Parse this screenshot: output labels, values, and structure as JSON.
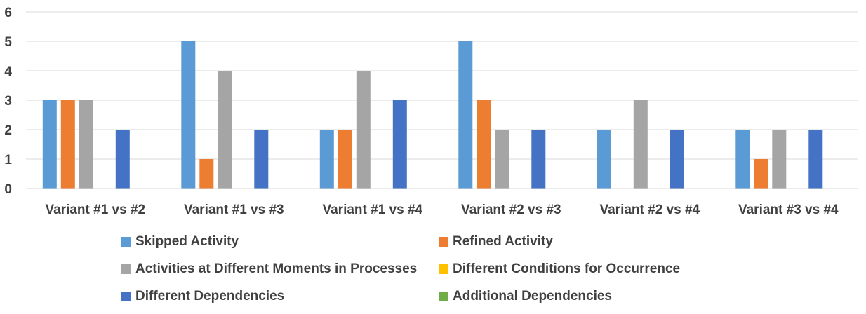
{
  "chart_data": {
    "type": "bar",
    "title": "",
    "xlabel": "",
    "ylabel": "",
    "ylim": [
      0,
      6
    ],
    "yticks": [
      0,
      1,
      2,
      3,
      4,
      5,
      6
    ],
    "grid": true,
    "legend_position": "bottom",
    "categories": [
      "Variant #1 vs #2",
      "Variant #1 vs #3",
      "Variant #1 vs #4",
      "Variant #2 vs #3",
      "Variant #2 vs #4",
      "Variant #3 vs #4"
    ],
    "series": [
      {
        "name": "Skipped Activity",
        "color": "#5b9bd5",
        "values": [
          3,
          5,
          2,
          5,
          2,
          2
        ]
      },
      {
        "name": "Refined Activity",
        "color": "#ed7d31",
        "values": [
          3,
          1,
          2,
          3,
          0,
          1
        ]
      },
      {
        "name": "Activities at Different Moments in Processes",
        "color": "#a5a5a5",
        "values": [
          3,
          4,
          4,
          2,
          3,
          2
        ]
      },
      {
        "name": "Different Conditions for Occurrence",
        "color": "#ffc000",
        "values": [
          0,
          0,
          0,
          0,
          0,
          0
        ]
      },
      {
        "name": "Different Dependencies",
        "color": "#4472c4",
        "values": [
          2,
          2,
          3,
          2,
          2,
          2
        ]
      },
      {
        "name": "Additional Dependencies",
        "color": "#70ad47",
        "values": [
          0,
          0,
          0,
          0,
          0,
          0
        ]
      }
    ]
  }
}
